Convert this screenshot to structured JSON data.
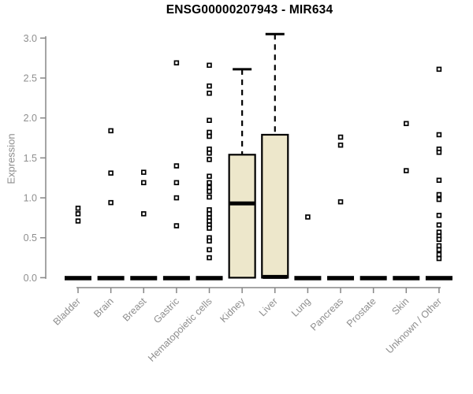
{
  "chart_data": {
    "type": "box",
    "title": "ENSG00000207943 - MIR634",
    "ylabel": "Expression",
    "xlabel": "",
    "ylim": [
      0.0,
      3.0
    ],
    "yticks": [
      "0.0",
      "0.5",
      "1.0",
      "1.5",
      "2.0",
      "2.5",
      "3.0"
    ],
    "grid": false,
    "legend": null,
    "categories": [
      "Bladder",
      "Brain",
      "Breast",
      "Gastric",
      "Hematopoietic cells",
      "Kidney",
      "Liver",
      "Lung",
      "Pancreas",
      "Prostate",
      "Skin",
      "Unknown / Other"
    ],
    "boxes": [
      {
        "category": "Bladder",
        "q1": 0,
        "median": 0,
        "q3": 0,
        "whisker_low": 0,
        "whisker_high": 0,
        "outliers": [
          0.87,
          0.8,
          0.71
        ]
      },
      {
        "category": "Brain",
        "q1": 0,
        "median": 0,
        "q3": 0,
        "whisker_low": 0,
        "whisker_high": 0,
        "outliers": [
          1.84,
          1.31,
          0.94
        ]
      },
      {
        "category": "Breast",
        "q1": 0,
        "median": 0,
        "q3": 0,
        "whisker_low": 0,
        "whisker_high": 0,
        "outliers": [
          1.32,
          1.19,
          0.8
        ]
      },
      {
        "category": "Gastric",
        "q1": 0,
        "median": 0,
        "q3": 0,
        "whisker_low": 0,
        "whisker_high": 0,
        "outliers": [
          2.69,
          1.4,
          1.19,
          1.0,
          0.65
        ]
      },
      {
        "category": "Hematopoietic cells",
        "q1": 0,
        "median": 0,
        "q3": 0,
        "whisker_low": 0,
        "whisker_high": 0,
        "outliers": [
          2.66,
          2.4,
          2.31,
          1.97,
          1.82,
          1.77,
          1.61,
          1.56,
          1.48,
          1.27,
          1.19,
          1.13,
          1.08,
          1.01,
          0.85,
          0.8,
          0.75,
          0.71,
          0.66,
          0.62,
          0.5,
          0.46,
          0.35,
          0.25
        ]
      },
      {
        "category": "Kidney",
        "q1": 0,
        "median": 0.93,
        "q3": 1.54,
        "whisker_low": 0,
        "whisker_high": 2.61,
        "outliers": []
      },
      {
        "category": "Liver",
        "q1": 0,
        "median": 0,
        "q3": 1.79,
        "whisker_low": 0,
        "whisker_high": 3.05,
        "outliers": []
      },
      {
        "category": "Lung",
        "q1": 0,
        "median": 0,
        "q3": 0,
        "whisker_low": 0,
        "whisker_high": 0,
        "outliers": [
          0.76
        ]
      },
      {
        "category": "Pancreas",
        "q1": 0,
        "median": 0,
        "q3": 0,
        "whisker_low": 0,
        "whisker_high": 0,
        "outliers": [
          1.76,
          1.66,
          0.95
        ]
      },
      {
        "category": "Prostate",
        "q1": 0,
        "median": 0,
        "q3": 0,
        "whisker_low": 0,
        "whisker_high": 0,
        "outliers": []
      },
      {
        "category": "Skin",
        "q1": 0,
        "median": 0,
        "q3": 0,
        "whisker_low": 0,
        "whisker_high": 0,
        "outliers": [
          1.93,
          1.34
        ]
      },
      {
        "category": "Unknown / Other",
        "q1": 0,
        "median": 0,
        "q3": 0,
        "whisker_low": 0,
        "whisker_high": 0,
        "outliers": [
          2.61,
          1.79,
          1.61,
          1.57,
          1.22,
          1.04,
          0.98,
          0.78,
          0.66,
          0.57,
          0.52,
          0.48,
          0.4,
          0.35,
          0.29,
          0.24
        ]
      }
    ],
    "colors": {
      "box_fill": "#EDE7CB",
      "box_stroke": "#000000",
      "median": "#000000",
      "outlier_fill": "#FFFFFF",
      "axis": "#878787",
      "tick_label": "#8E8E8E",
      "title": "#000000",
      "background": "#FFFFFF"
    }
  }
}
